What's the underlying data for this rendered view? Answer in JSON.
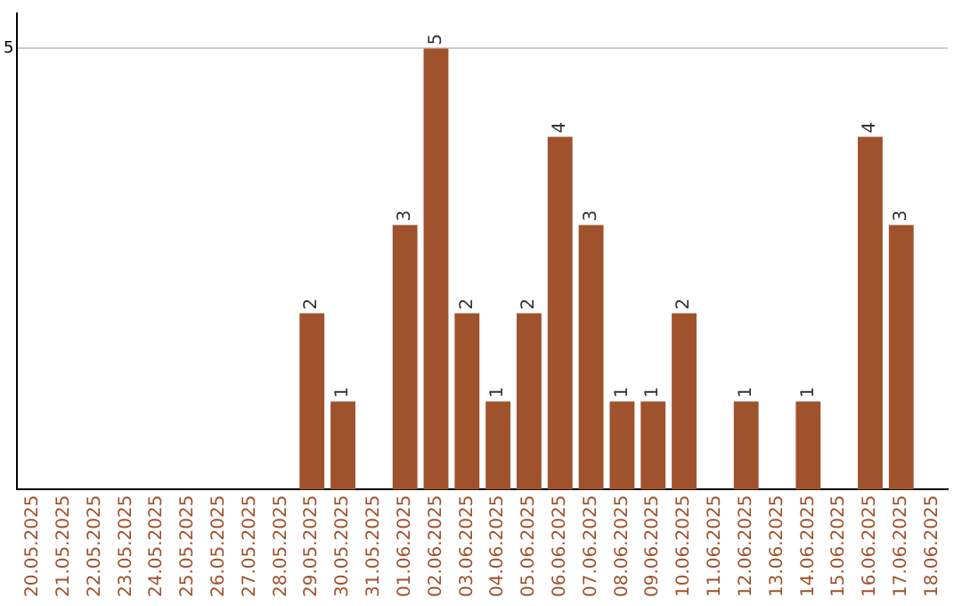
{
  "chart_data": {
    "type": "bar",
    "categories": [
      "20.05.2025",
      "21.05.2025",
      "22.05.2025",
      "23.05.2025",
      "24.05.2025",
      "25.05.2025",
      "26.05.2025",
      "27.05.2025",
      "28.05.2025",
      "29.05.2025",
      "30.05.2025",
      "31.05.2025",
      "01.06.2025",
      "02.06.2025",
      "03.06.2025",
      "04.06.2025",
      "05.06.2025",
      "06.06.2025",
      "07.06.2025",
      "08.06.2025",
      "09.06.2025",
      "10.06.2025",
      "11.06.2025",
      "12.06.2025",
      "13.06.2025",
      "14.06.2025",
      "15.06.2025",
      "16.06.2025",
      "17.06.2025",
      "18.06.2025"
    ],
    "values": [
      0,
      0,
      0,
      0,
      0,
      0,
      0,
      0,
      0,
      2,
      1,
      0,
      3,
      5,
      2,
      1,
      2,
      4,
      3,
      1,
      1,
      2,
      0,
      1,
      0,
      1,
      0,
      4,
      3,
      0
    ],
    "value_labels": [
      null,
      null,
      null,
      null,
      null,
      null,
      null,
      null,
      null,
      "2",
      "1",
      null,
      "3",
      "5",
      "2",
      "1",
      "2",
      "4",
      "3",
      "1",
      "1",
      "2",
      null,
      "1",
      null,
      "1",
      null,
      "4",
      "3",
      null
    ],
    "color": "#a0522d",
    "ylim": [
      0,
      5.4
    ],
    "yticks": [
      5
    ],
    "grid": "y",
    "legend": false
  }
}
